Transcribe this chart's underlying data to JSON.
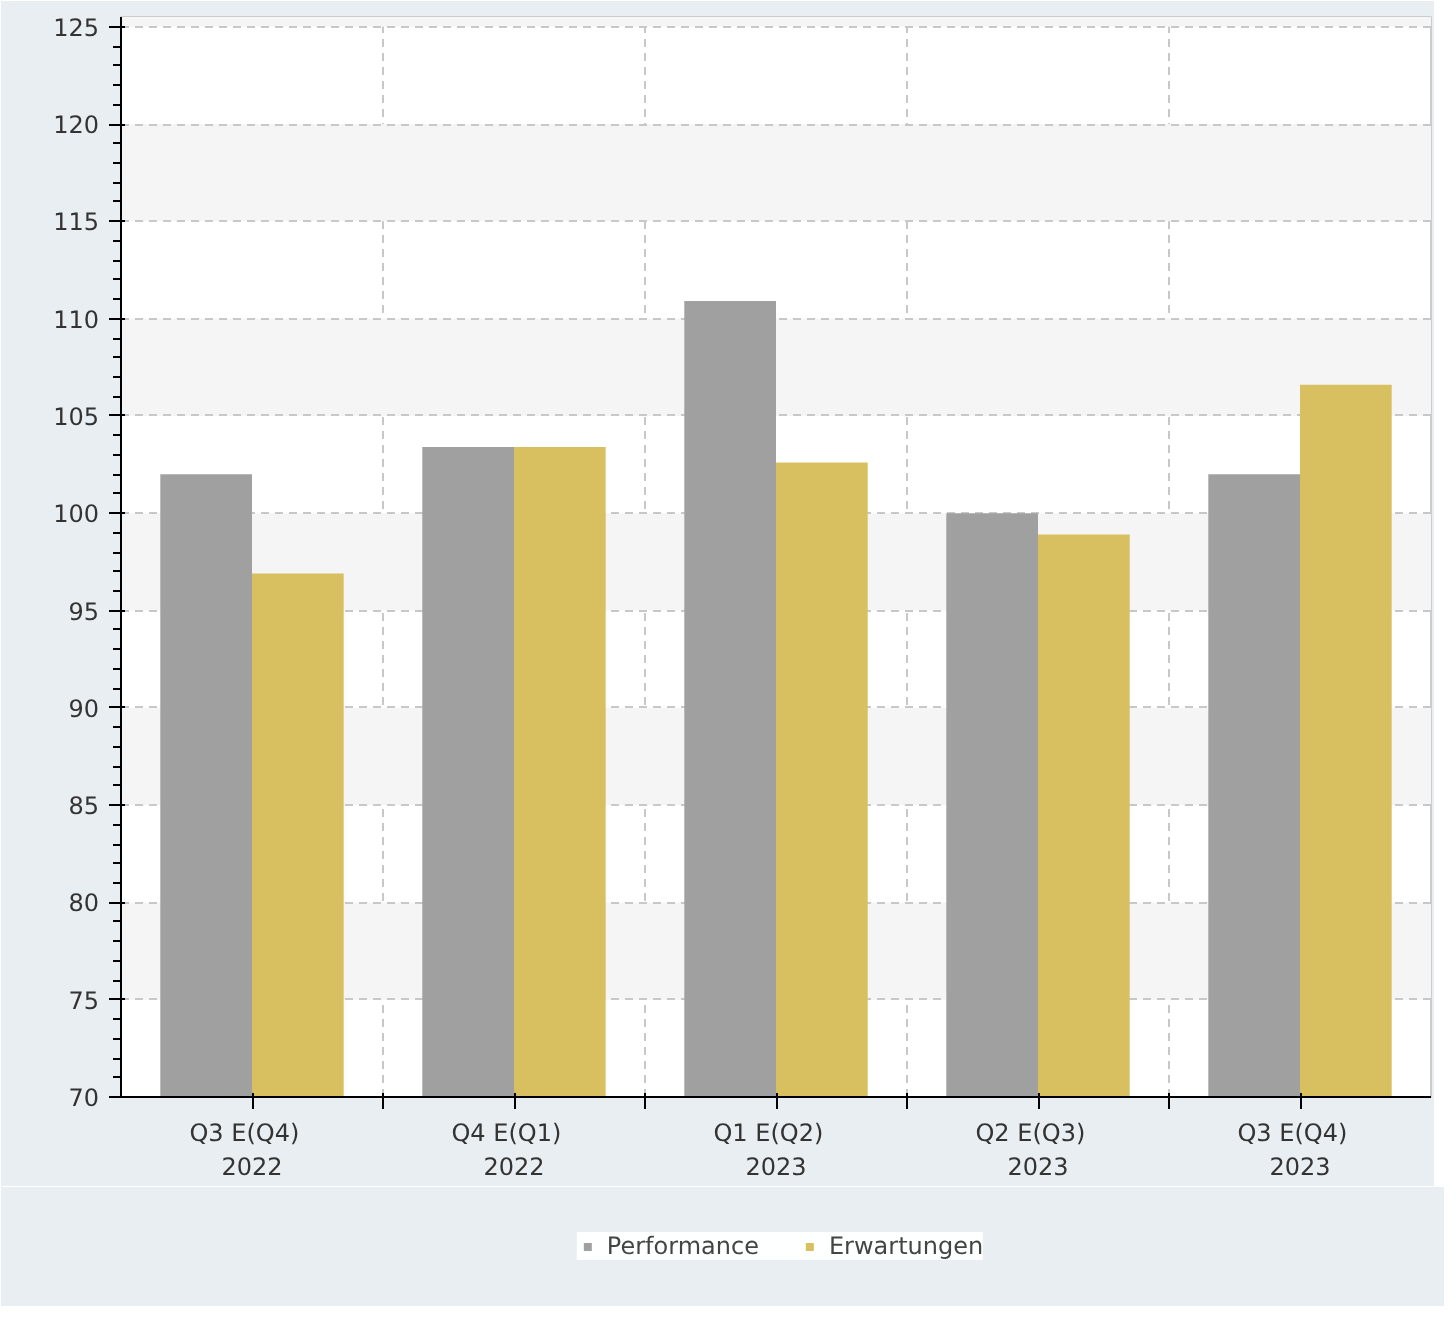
{
  "chart_data": {
    "type": "bar",
    "categories": [
      "Q3   E(Q4)\n2022",
      "Q4   E(Q1)\n2022",
      "Q1   E(Q2)\n2023",
      "Q2   E(Q3)\n2023",
      "Q3   E(Q4)\n2023"
    ],
    "series": [
      {
        "name": "Performance",
        "color": "#a0a0a0",
        "values": [
          102,
          103.4,
          110.9,
          100,
          102
        ]
      },
      {
        "name": "Erwartungen",
        "color": "#d8c060",
        "values": [
          96.9,
          103.4,
          102.6,
          98.9,
          106.6
        ]
      }
    ],
    "ylim": [
      70,
      125.5
    ],
    "yticks": [
      70,
      75,
      80,
      85,
      90,
      95,
      100,
      105,
      110,
      115,
      120,
      125
    ],
    "grid": true,
    "legend": "bottom"
  }
}
